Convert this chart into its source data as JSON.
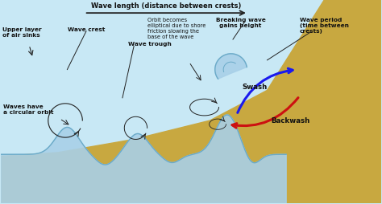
{
  "bg_sky": "#c8e8f5",
  "bg_sand": "#c8a840",
  "wave_fill": "#a8d0e8",
  "wave_edge": "#6aaac8",
  "text_color": "#111111",
  "arrow_color": "#222222",
  "swash_color": "#1a1aee",
  "backwash_color": "#cc1111",
  "title_text": "Wave length (distance between crests)",
  "labels": {
    "upper_layer": "Upper layer\nof air sinks",
    "wave_crest": "Wave crest",
    "wave_trough": "Wave trough",
    "orbit": "Orbit becomes\nelliptical due to shore\nfriction slowing the\nbase of the wave",
    "breaking": "Breaking wave\ngains height",
    "wave_period": "Wave period\n(time between\ncrests)",
    "circular": "Waves have\na circular orbit",
    "swash": "Swash",
    "backwash": "Backwash"
  },
  "xlim": [
    0,
    10
  ],
  "ylim": [
    0,
    5.4
  ]
}
